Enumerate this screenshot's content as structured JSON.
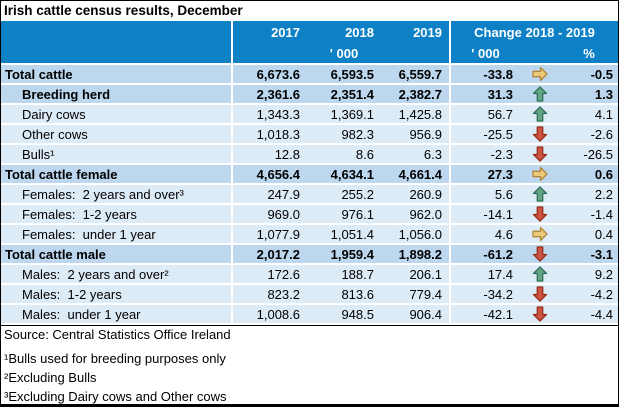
{
  "title": "Irish cattle census results, December",
  "header": {
    "years": [
      "2017",
      "2018",
      "2019"
    ],
    "unit_2018": "' 000",
    "change_title": "Change 2018 - 2019",
    "change_unit": "' 000",
    "change_pct_label": "%"
  },
  "colors": {
    "header_bg": "#0E81C6",
    "row_light": "#DDEBF7",
    "row_dark": "#BDD7EE",
    "arrow_up_fill": "#63A583",
    "arrow_up_stroke": "#2F7058",
    "arrow_down_fill": "#CB5442",
    "arrow_down_stroke": "#9A2C1C",
    "arrow_right_fill": "#EDC97B",
    "arrow_right_stroke": "#B0863B"
  },
  "rows": [
    {
      "label": "Total cattle",
      "indent": 0,
      "bold": true,
      "shade": "dark",
      "v2017": "6,673.6",
      "v2018": "6,593.5",
      "v2019": "6,559.7",
      "change": "-33.8",
      "trend": "right",
      "pct": "-0.5"
    },
    {
      "label": "Breeding herd",
      "indent": 1,
      "bold": true,
      "shade": "dark",
      "v2017": "2,361.6",
      "v2018": "2,351.4",
      "v2019": "2,382.7",
      "change": "31.3",
      "trend": "up",
      "pct": "1.3"
    },
    {
      "label": "Dairy cows",
      "indent": 1,
      "bold": false,
      "shade": "light",
      "v2017": "1,343.3",
      "v2018": "1,369.1",
      "v2019": "1,425.8",
      "change": "56.7",
      "trend": "up",
      "pct": "4.1"
    },
    {
      "label": "Other cows",
      "indent": 1,
      "bold": false,
      "shade": "light",
      "v2017": "1,018.3",
      "v2018": "982.3",
      "v2019": "956.9",
      "change": "-25.5",
      "trend": "down",
      "pct": "-2.6"
    },
    {
      "label": "Bulls¹",
      "indent": 1,
      "bold": false,
      "shade": "light",
      "v2017": "12.8",
      "v2018": "8.6",
      "v2019": "6.3",
      "change": "-2.3",
      "trend": "down",
      "pct": "-26.5"
    },
    {
      "label": "Total cattle female",
      "indent": 0,
      "bold": true,
      "shade": "dark",
      "v2017": "4,656.4",
      "v2018": "4,634.1",
      "v2019": "4,661.4",
      "change": "27.3",
      "trend": "right",
      "pct": "0.6"
    },
    {
      "label": "Females:  2 years and over³",
      "indent": 1,
      "bold": false,
      "shade": "light",
      "v2017": "247.9",
      "v2018": "255.2",
      "v2019": "260.9",
      "change": "5.6",
      "trend": "up",
      "pct": "2.2"
    },
    {
      "label": "Females:  1-2 years",
      "indent": 1,
      "bold": false,
      "shade": "light",
      "v2017": "969.0",
      "v2018": "976.1",
      "v2019": "962.0",
      "change": "-14.1",
      "trend": "down",
      "pct": "-1.4"
    },
    {
      "label": "Females:  under 1 year",
      "indent": 1,
      "bold": false,
      "shade": "light",
      "v2017": "1,077.9",
      "v2018": "1,051.4",
      "v2019": "1,056.0",
      "change": "4.6",
      "trend": "right",
      "pct": "0.4"
    },
    {
      "label": "Total cattle male",
      "indent": 0,
      "bold": true,
      "shade": "dark",
      "v2017": "2,017.2",
      "v2018": "1,959.4",
      "v2019": "1,898.2",
      "change": "-61.2",
      "trend": "down",
      "pct": "-3.1"
    },
    {
      "label": "Males:  2 years and over²",
      "indent": 1,
      "bold": false,
      "shade": "light",
      "v2017": "172.6",
      "v2018": "188.7",
      "v2019": "206.1",
      "change": "17.4",
      "trend": "up",
      "pct": "9.2"
    },
    {
      "label": "Males:  1-2 years",
      "indent": 1,
      "bold": false,
      "shade": "light",
      "v2017": "823.2",
      "v2018": "813.6",
      "v2019": "779.4",
      "change": "-34.2",
      "trend": "down",
      "pct": "-4.2"
    },
    {
      "label": "Males:  under 1 year",
      "indent": 1,
      "bold": false,
      "shade": "light",
      "v2017": "1,008.6",
      "v2018": "948.5",
      "v2019": "906.4",
      "change": "-42.1",
      "trend": "down",
      "pct": "-4.4"
    }
  ],
  "source": "Source: Central Statistics Office Ireland",
  "footnotes": [
    "¹Bulls used for breeding purposes only",
    "²Excluding Bulls",
    "³Excluding Dairy cows and Other cows"
  ]
}
